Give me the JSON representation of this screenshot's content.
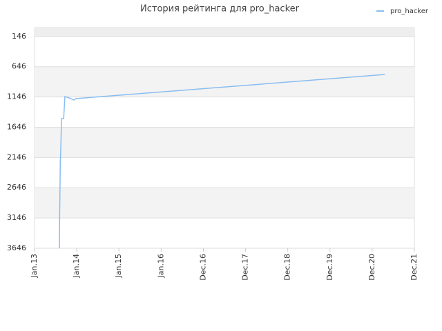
{
  "chart_data": {
    "type": "line",
    "title": "История рейтинга для pro_hacker",
    "x": [
      0.59,
      0.59,
      0.61,
      0.62,
      0.64,
      0.69,
      0.71,
      0.72,
      0.82,
      0.93,
      0.98,
      8.3
    ],
    "series": [
      {
        "name": "pro_hacker",
        "color": "#89bdf0",
        "values": [
          3646,
          3418,
          2221,
          2050,
          1504,
          1504,
          1253,
          1139,
          1162,
          1196,
          1173,
          775
        ]
      }
    ],
    "xlim": [
      0,
      9
    ],
    "xticks": [
      {
        "value": 0,
        "label": "Jan.13"
      },
      {
        "value": 1,
        "label": "Jan.14"
      },
      {
        "value": 2,
        "label": "Jan.15"
      },
      {
        "value": 3,
        "label": "Jan.16"
      },
      {
        "value": 4,
        "label": "Dec.16"
      },
      {
        "value": 5,
        "label": "Dec.17"
      },
      {
        "value": 6,
        "label": "Dec.18"
      },
      {
        "value": 7,
        "label": "Dec.19"
      },
      {
        "value": 8,
        "label": "Dec.20"
      },
      {
        "value": 9,
        "label": "Dec.21"
      }
    ],
    "ylim": [
      3646,
      0
    ],
    "yticks": [
      146,
      646,
      1146,
      1646,
      2146,
      2646,
      3146,
      3646
    ],
    "grid": true,
    "legend": "top-right"
  }
}
